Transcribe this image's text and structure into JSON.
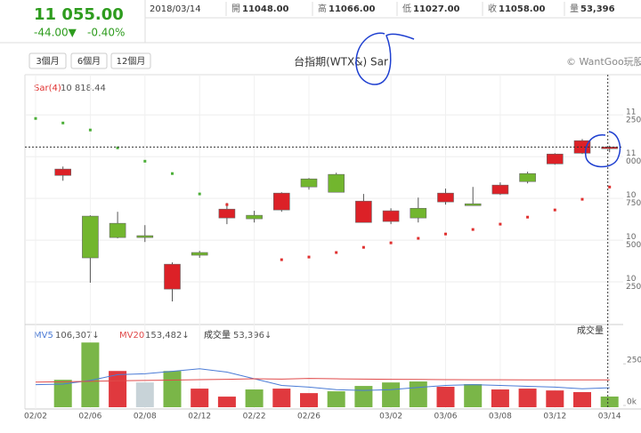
{
  "header": {
    "price": "11 055.00",
    "change": "-44.00▼",
    "change_pct": "-0.40%",
    "date": "2018/03/14",
    "quote": [
      {
        "label": "開",
        "value": "11048.00"
      },
      {
        "label": "高",
        "value": "11066.00"
      },
      {
        "label": "低",
        "value": "11027.00"
      },
      {
        "label": "收",
        "value": "11058.00"
      },
      {
        "label": "量",
        "value": "53,396"
      }
    ],
    "ranges": [
      "3個月",
      "6個月",
      "12個月"
    ],
    "copyright": "© WantGoo玩股網"
  },
  "chart_data": {
    "type": "candlestick",
    "title": "台指期(WTX&) Sar",
    "categories": [
      "02/02",
      null,
      "02/06",
      null,
      "02/08",
      null,
      "02/12",
      null,
      "02/22",
      null,
      "02/26",
      null,
      null,
      "03/02",
      null,
      "03/06",
      null,
      "03/08",
      null,
      "03/12",
      null,
      "03/14"
    ],
    "open": [
      null,
      10888,
      10644,
      10601,
      10527,
      10207,
      10426,
      10633,
      10649,
      10681,
      10867,
      10894,
      10606,
      10612,
      10691,
      10729,
      10718,
      10777,
      10899,
      10957,
      11021,
      11048
    ],
    "high": [
      null,
      10941,
      10649,
      10670,
      10590,
      10367,
      10436,
      10723,
      10676,
      10787,
      10872,
      10904,
      10777,
      10691,
      10755,
      10809,
      10819,
      10846,
      10910,
      11021,
      11106,
      11066
    ],
    "low": [
      null,
      10856,
      10245,
      10511,
      10489,
      10133,
      10394,
      10596,
      10606,
      10670,
      10803,
      10787,
      10606,
      10596,
      10606,
      10713,
      10707,
      10771,
      10840,
      10952,
      11016,
      11027
    ],
    "close": [
      null,
      10926,
      10394,
      10516,
      10516,
      10356,
      10410,
      10686,
      10628,
      10782,
      10819,
      10787,
      10734,
      10676,
      10633,
      10782,
      10707,
      10830,
      10851,
      11016,
      11096,
      11058
    ],
    "up_color": "#dc2127",
    "down_color": "#72b62e",
    "sar": {
      "name": "Sar(4)",
      "last_label": "10 818.44",
      "up_color": "#e0302f",
      "down_color": "#4caf38",
      "values": [
        11229,
        11202,
        11160,
        11053,
        10973,
        10899,
        10777,
        10713,
        null,
        10383,
        10399,
        10426,
        10457,
        10484,
        10511,
        10537,
        10564,
        10596,
        10638,
        10681,
        10745,
        10818.44
      ]
    },
    "ylim": [
      10000,
      11470
    ],
    "yticks": [
      {
        "value": 10250,
        "label": "10 250"
      },
      {
        "value": 10500,
        "label": "10 500"
      },
      {
        "value": 10750,
        "label": "10 750"
      },
      {
        "value": 11000,
        "label": "11 000"
      },
      {
        "value": 11250,
        "label": "11 250"
      }
    ],
    "grid": true,
    "volume": {
      "name": "成交量",
      "last_label": "53,396↓",
      "values": [
        null,
        154000,
        378000,
        207000,
        138000,
        207000,
        101000,
        53000,
        96000,
        101000,
        74000,
        85000,
        117000,
        138000,
        144000,
        112000,
        128000,
        96000,
        101000,
        90000,
        80000,
        53396
      ],
      "colors": [
        null,
        "#7ab648",
        "#7ab648",
        "#e0393e",
        "#c8d3d8",
        "#7ab648",
        "#e0393e",
        "#e0393e",
        "#7ab648",
        "#e0393e",
        "#e0393e",
        "#7ab648",
        "#7ab648",
        "#7ab648",
        "#7ab648",
        "#e0393e",
        "#7ab648",
        "#e0393e",
        "#e0393e",
        "#e0393e",
        "#e0393e",
        "#7ab648"
      ],
      "ylim": [
        0,
        470000
      ],
      "yticks": [
        {
          "value": 0,
          "label": "0k"
        },
        {
          "value": 250000,
          "label": "250k"
        }
      ],
      "series": [
        {
          "name": "MV5",
          "color": "#4b7bd6",
          "last_label": "106,307↓",
          "values": [
            125000,
            128000,
            150000,
            185000,
            190000,
            205000,
            220000,
            200000,
            160000,
            120000,
            110000,
            95000,
            90000,
            95000,
            108000,
            120000,
            125000,
            120000,
            115000,
            110000,
            100000,
            106307
          ]
        },
        {
          "name": "MV20",
          "color": "#e04a4a",
          "last_label": "153,482↓",
          "values": [
            140000,
            142000,
            145000,
            148000,
            150000,
            152000,
            155000,
            157000,
            160000,
            158000,
            162000,
            160000,
            158000,
            157000,
            156000,
            155000,
            154000,
            154000,
            153800,
            153600,
            153500,
            153482
          ]
        }
      ]
    }
  }
}
